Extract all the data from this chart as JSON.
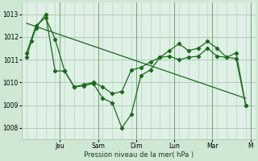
{
  "background_color": "#cfe8d3",
  "plot_bg_color": "#dff0e6",
  "grid_color": "#b0ccb8",
  "line_color": "#1a6b1a",
  "marker_color": "#1a6b1a",
  "xlabel": "Pression niveau de la mer( hPa )",
  "ylim": [
    1007.5,
    1013.5
  ],
  "yticks": [
    1008,
    1009,
    1010,
    1011,
    1012,
    1013
  ],
  "day_labels": [
    "Jeu",
    "Sam",
    "Dim",
    "Lun",
    "Mar",
    "M"
  ],
  "day_tick_pos": [
    3.5,
    7.5,
    11.5,
    15.5,
    19.5,
    23.5
  ],
  "series1_x": [
    0,
    0.5,
    1,
    2,
    3,
    4,
    5,
    6,
    7,
    8,
    9,
    10,
    11,
    12,
    13,
    14,
    15,
    16,
    17,
    18,
    19,
    20,
    21,
    22,
    23
  ],
  "series1_y": [
    1011.1,
    1011.8,
    1012.4,
    1013.0,
    1010.5,
    1010.5,
    1009.8,
    1009.9,
    1010.0,
    1009.8,
    1009.5,
    1009.6,
    1010.55,
    1010.65,
    1010.9,
    1011.1,
    1011.15,
    1011.0,
    1011.1,
    1011.15,
    1011.5,
    1011.15,
    1011.1,
    1011.05,
    1009.0
  ],
  "series2_x": [
    0,
    1,
    2,
    3,
    4,
    5,
    6,
    7,
    8,
    9,
    10,
    11,
    12,
    13,
    14,
    15,
    16,
    17,
    18,
    19,
    20,
    21,
    22,
    23
  ],
  "series2_y": [
    1011.3,
    1012.5,
    1012.85,
    1011.9,
    1010.5,
    1009.8,
    1009.85,
    1009.95,
    1009.3,
    1009.1,
    1008.0,
    1008.6,
    1010.3,
    1010.55,
    1011.1,
    1011.4,
    1011.7,
    1011.4,
    1011.5,
    1011.8,
    1011.5,
    1011.1,
    1011.3,
    1009.0
  ],
  "trend_x": [
    0,
    23
  ],
  "trend_y": [
    1012.6,
    1009.3
  ],
  "xlim": [
    -0.5,
    24.0
  ],
  "vline_positions": [
    3.5,
    7.5,
    11.5,
    15.5,
    19.5,
    23.5
  ]
}
